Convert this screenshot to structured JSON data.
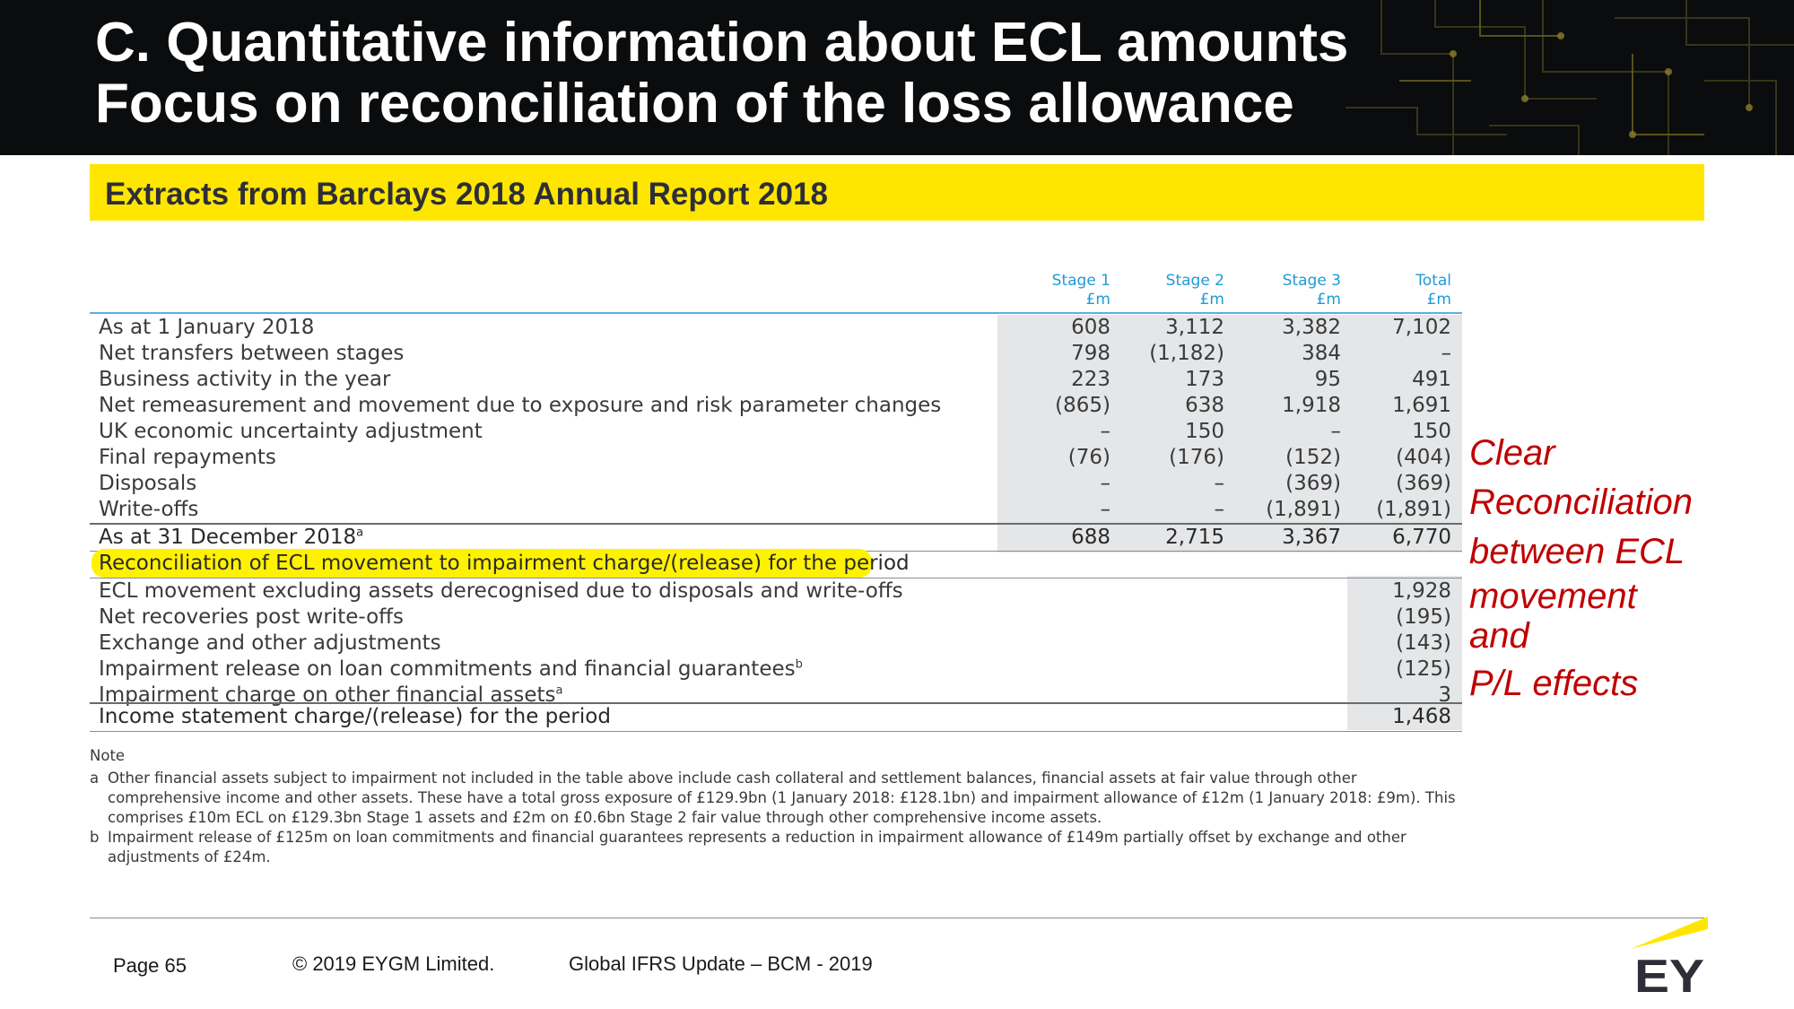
{
  "header": {
    "title_line1": "C. Quantitative information about ECL amounts",
    "title_line2": "Focus on reconciliation of the loss allowance"
  },
  "subtitle": "Extracts from Barclays 2018 Annual Report 2018",
  "table": {
    "columns": [
      {
        "name": "Stage 1",
        "unit": "£m"
      },
      {
        "name": "Stage 2",
        "unit": "£m"
      },
      {
        "name": "Stage 3",
        "unit": "£m"
      },
      {
        "name": "Total",
        "unit": "£m"
      }
    ],
    "rows": [
      {
        "label": "As at 1 January 2018",
        "values": [
          "608",
          "3,112",
          "3,382",
          "7,102"
        ]
      },
      {
        "label": "Net transfers between stages",
        "values": [
          "798",
          "(1,182)",
          "384",
          "–"
        ]
      },
      {
        "label": "Business activity in the year",
        "values": [
          "223",
          "173",
          "95",
          "491"
        ]
      },
      {
        "label": "Net remeasurement and movement due to exposure and risk parameter changes",
        "values": [
          "(865)",
          "638",
          "1,918",
          "1,691"
        ]
      },
      {
        "label": "UK economic uncertainty adjustment",
        "values": [
          "–",
          "150",
          "–",
          "150"
        ]
      },
      {
        "label": "Final repayments",
        "values": [
          "(76)",
          "(176)",
          "(152)",
          "(404)"
        ]
      },
      {
        "label": "Disposals",
        "values": [
          "–",
          "–",
          "(369)",
          "(369)"
        ]
      },
      {
        "label": "Write-offs",
        "values": [
          "–",
          "–",
          "(1,891)",
          "(1,891)"
        ]
      },
      {
        "label": "As at 31 December 2018",
        "sup": "a",
        "values": [
          "688",
          "2,715",
          "3,367",
          "6,770"
        ]
      }
    ],
    "reconciliation_heading": "Reconciliation of ECL movement to impairment charge/(release) for the period",
    "reconciliation_rows": [
      {
        "label": "ECL movement excluding assets derecognised due to disposals and write-offs",
        "value": "1,928"
      },
      {
        "label": "Net recoveries post write-offs",
        "value": "(195)"
      },
      {
        "label": "Exchange and other adjustments",
        "value": "(143)"
      },
      {
        "label": "Impairment release on loan commitments and financial guarantees",
        "sup": "b",
        "value": "(125)"
      },
      {
        "label": "Impairment charge on other financial assets",
        "sup": "a",
        "value": "3"
      }
    ],
    "total_row": {
      "label": "Income statement charge/(release) for the period",
      "value": "1,468"
    }
  },
  "note": {
    "heading": "Note",
    "a_key": "a",
    "a_text": "Other financial assets subject to impairment not included in the table above include cash collateral and settlement balances, financial assets at fair value through other comprehensive income and other assets. These have a total gross exposure of £129.9bn (1 January 2018: £128.1bn) and impairment allowance of £12m (1 January 2018: £9m). This comprises £10m ECL on £129.3bn Stage 1 assets and £2m on £0.6bn Stage 2 fair value through other comprehensive income assets.",
    "b_key": "b",
    "b_text": "Impairment release of £125m on loan commitments and financial guarantees represents a reduction in impairment allowance of £149m partially offset by exchange and other adjustments of £24m."
  },
  "annotation": {
    "lines": [
      "Clear",
      "Reconciliation",
      "between ECL",
      "movement",
      "and",
      "P/L effects"
    ]
  },
  "footer": {
    "page": "Page 65",
    "copyright": "© 2019 EYGM Limited.",
    "event": "Global IFRS Update – BCM - 2019",
    "logo_text": "EY"
  },
  "colors": {
    "header_bg": "#0a0c0d",
    "yellow": "#ffe600",
    "column_header_blue": "#1f9ad6",
    "annotation_red": "#c00000",
    "shade": "#e4e6e8"
  }
}
